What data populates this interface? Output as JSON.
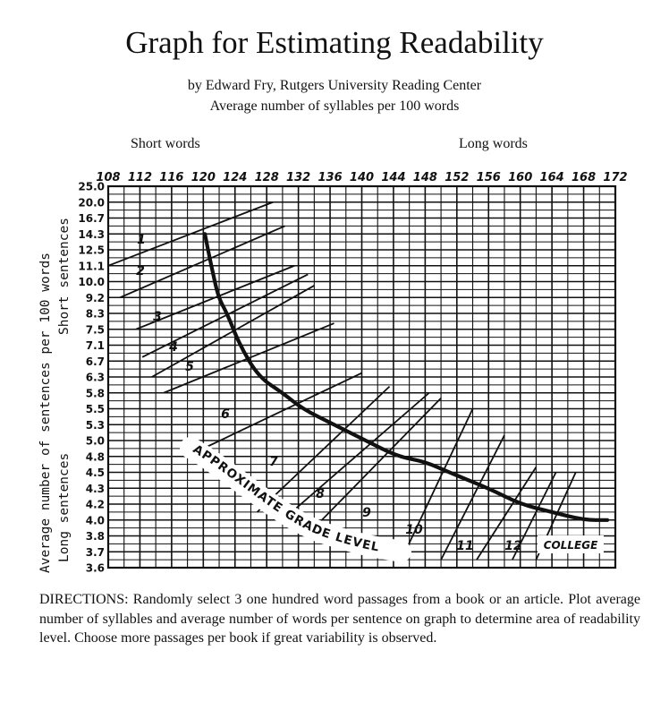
{
  "chart_data": {
    "type": "line",
    "title": "Graph for Estimating Readability",
    "subtitle": "by Edward Fry, Rutgers University Reading Center",
    "xlabel": "Average number of syllables per 100 words",
    "x_left_note": "Short words",
    "x_right_note": "Long words",
    "ylabel": "Average number of sentences per 100 words",
    "y_top_note": "Short sentences",
    "y_bottom_note": "Long sentences",
    "x_ticks": [
      108,
      112,
      116,
      120,
      124,
      128,
      132,
      136,
      140,
      144,
      148,
      152,
      156,
      160,
      164,
      168,
      172
    ],
    "y_ticks": [
      "25.0",
      "20.0",
      "16.7",
      "14.3",
      "12.5",
      "11.1",
      "10.0",
      "9.2",
      "8.3",
      "7.5",
      "7.1",
      "6.7",
      "6.3",
      "5.8",
      "5.5",
      "5.3",
      "5.0",
      "4.8",
      "4.5",
      "4.3",
      "4.2",
      "4.0",
      "3.8",
      "3.7",
      "3.6"
    ],
    "grid": true,
    "curve_label": "APPROXIMATE GRADE LEVEL",
    "grade_labels": [
      "1",
      "2",
      "3",
      "4",
      "5",
      "6",
      "7",
      "8",
      "9",
      "10",
      "11",
      "12",
      "COLLEGE"
    ],
    "curve": [
      {
        "x": 120.2,
        "y": 14.3
      },
      {
        "x": 121.0,
        "y": 11.1
      },
      {
        "x": 121.9,
        "y": 9.2
      },
      {
        "x": 123.0,
        "y": 8.3
      },
      {
        "x": 124.6,
        "y": 7.1
      },
      {
        "x": 127.0,
        "y": 6.3
      },
      {
        "x": 130.0,
        "y": 5.8
      },
      {
        "x": 132.5,
        "y": 5.5
      },
      {
        "x": 136.5,
        "y": 5.3
      },
      {
        "x": 140.5,
        "y": 5.0
      },
      {
        "x": 144.5,
        "y": 4.8
      },
      {
        "x": 148.0,
        "y": 4.7
      },
      {
        "x": 151.0,
        "y": 4.5
      },
      {
        "x": 156.0,
        "y": 4.3
      },
      {
        "x": 160.0,
        "y": 4.2
      },
      {
        "x": 164.0,
        "y": 4.1
      },
      {
        "x": 168.0,
        "y": 4.0
      },
      {
        "x": 171.0,
        "y": 4.0
      }
    ],
    "grade_lines": [
      {
        "from": {
          "x": 108.0,
          "y": 11.1
        },
        "to": {
          "x": 128.8,
          "y": 20.0
        }
      },
      {
        "from": {
          "x": 109.5,
          "y": 9.2
        },
        "to": {
          "x": 130.3,
          "y": 15.5
        }
      },
      {
        "from": {
          "x": 111.5,
          "y": 7.5
        },
        "to": {
          "x": 131.5,
          "y": 11.1
        }
      },
      {
        "from": {
          "x": 112.3,
          "y": 6.8
        },
        "to": {
          "x": 133.2,
          "y": 10.5
        }
      },
      {
        "from": {
          "x": 113.5,
          "y": 6.3
        },
        "to": {
          "x": 134.0,
          "y": 9.8
        }
      },
      {
        "from": {
          "x": 115.0,
          "y": 5.8
        },
        "to": {
          "x": 136.5,
          "y": 7.8
        }
      },
      {
        "from": {
          "x": 120.0,
          "y": 4.9
        },
        "to": {
          "x": 140.0,
          "y": 6.4
        }
      },
      {
        "from": {
          "x": 126.8,
          "y": 4.1
        },
        "to": {
          "x": 143.5,
          "y": 6.0
        }
      },
      {
        "from": {
          "x": 130.0,
          "y": 4.0
        },
        "to": {
          "x": 148.5,
          "y": 5.8
        }
      },
      {
        "from": {
          "x": 133.0,
          "y": 3.8
        },
        "to": {
          "x": 150.0,
          "y": 5.7
        }
      },
      {
        "from": {
          "x": 145.0,
          "y": 3.65
        },
        "to": {
          "x": 154.0,
          "y": 5.5
        }
      },
      {
        "from": {
          "x": 150.0,
          "y": 3.65
        },
        "to": {
          "x": 158.0,
          "y": 5.1
        }
      },
      {
        "from": {
          "x": 154.5,
          "y": 3.65
        },
        "to": {
          "x": 162.0,
          "y": 4.6
        }
      },
      {
        "from": {
          "x": 159.0,
          "y": 3.65
        },
        "to": {
          "x": 164.5,
          "y": 4.5
        }
      },
      {
        "from": {
          "x": 162.0,
          "y": 3.65
        },
        "to": {
          "x": 167.0,
          "y": 4.5
        }
      }
    ]
  },
  "directions": "DIRECTIONS: Randomly select 3 one hundred word passages from a book or an article. Plot average number of syllables and average number of words per sentence on graph to determine area of readability level. Choose more passages per book if great variability is observed."
}
